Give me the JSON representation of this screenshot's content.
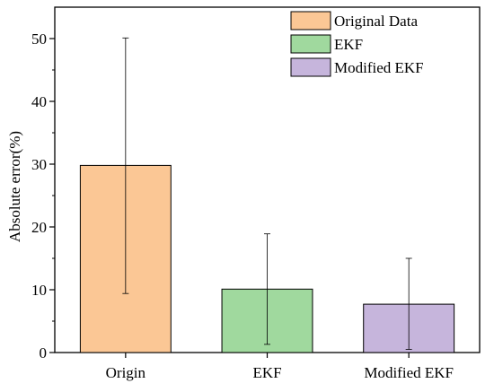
{
  "chart_data": {
    "type": "bar",
    "title": "",
    "xlabel": "",
    "ylabel": "Absolute error(%)",
    "ylim": [
      0,
      55
    ],
    "yticks": [
      0,
      10,
      20,
      30,
      40,
      50
    ],
    "categories": [
      "Origin",
      "EKF",
      "Modified EKF"
    ],
    "values": [
      29.8,
      10.1,
      7.7
    ],
    "error_low": [
      9.4,
      1.3,
      0.5
    ],
    "error_high": [
      50.1,
      18.9,
      15.0
    ],
    "legend": {
      "position": "top-right",
      "entries": [
        "Original Data",
        "EKF",
        "Modified EKF"
      ]
    },
    "colors": [
      "#fbc795",
      "#a0d99e",
      "#c6b5dc"
    ],
    "grid": false
  }
}
